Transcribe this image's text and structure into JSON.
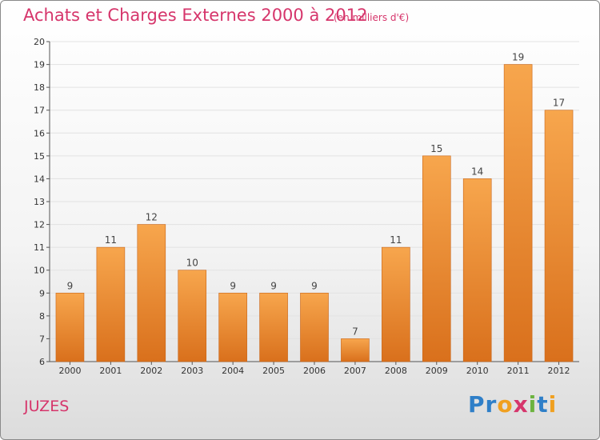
{
  "header": {
    "title": "Achats et Charges Externes 2000 à 2012",
    "subtitle": "(en milliers d'€)"
  },
  "footer": {
    "commune": "JUZES",
    "logo_letters": [
      "P",
      "r",
      "o",
      "x",
      "i",
      "t",
      "i"
    ],
    "logo_colors": [
      "#2f7fc8",
      "#2f7fc8",
      "#f0a020",
      "#d6356b",
      "#6cb33f",
      "#2f7fc8",
      "#f0a020"
    ]
  },
  "chart_data": {
    "type": "bar",
    "categories": [
      "2000",
      "2001",
      "2002",
      "2003",
      "2004",
      "2005",
      "2006",
      "2007",
      "2008",
      "2009",
      "2010",
      "2011",
      "2012"
    ],
    "values": [
      9,
      11,
      12,
      10,
      9,
      9,
      9,
      7,
      11,
      15,
      14,
      19,
      17
    ],
    "ylim": [
      6,
      20
    ],
    "yticks": [
      6,
      7,
      8,
      9,
      10,
      11,
      12,
      13,
      14,
      15,
      16,
      17,
      18,
      19,
      20
    ],
    "grid": true,
    "bar_color_light": "#f7a64d",
    "bar_color_dark": "#d9701c"
  }
}
